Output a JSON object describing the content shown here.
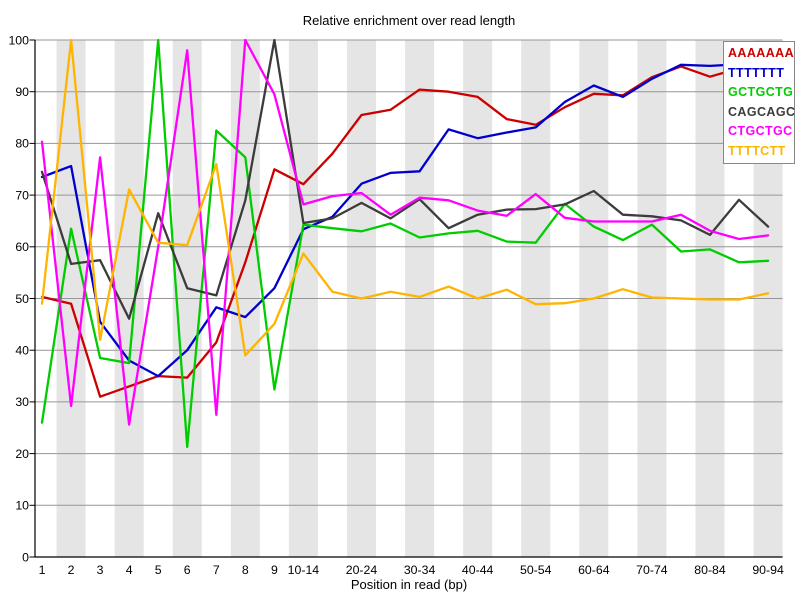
{
  "chart_data": {
    "type": "line",
    "title": "Relative enrichment over read length",
    "xlabel": "Position in read (bp)",
    "ylabel": "",
    "ylim": [
      0,
      100
    ],
    "yticks": [
      0,
      10,
      20,
      30,
      40,
      50,
      60,
      70,
      80,
      90,
      100
    ],
    "grid": "horizontal",
    "band_color": "#e5e5e5",
    "gridline_color": "#969696",
    "legend_position": "top-right",
    "categories": [
      "1",
      "2",
      "3",
      "4",
      "5",
      "6",
      "7",
      "8",
      "9",
      "10-14",
      "15-19",
      "20-24",
      "25-29",
      "30-34",
      "35-39",
      "40-44",
      "45-49",
      "50-54",
      "55-59",
      "60-64",
      "65-69",
      "70-74",
      "75-79",
      "80-84",
      "85-89",
      "90-94"
    ],
    "xticks_shown": [
      "1",
      "2",
      "3",
      "4",
      "5",
      "6",
      "7",
      "8",
      "9",
      "10-14",
      "20-24",
      "30-34",
      "40-44",
      "50-54",
      "60-64",
      "70-74",
      "80-84",
      "90-94"
    ],
    "series": [
      {
        "name": "AAAAAAA",
        "color": "#cc0000",
        "values": [
          50.3,
          49.0,
          31.0,
          33.0,
          35.0,
          34.7,
          41.5,
          57.0,
          75.0,
          72.1,
          78.0,
          85.5,
          86.5,
          90.4,
          90.0,
          89.0,
          84.7,
          83.6,
          87.0,
          89.6,
          89.3,
          92.8,
          94.9,
          92.9,
          94.5,
          95.5
        ]
      },
      {
        "name": "TTTTTTT",
        "color": "#0000cc",
        "values": [
          73.5,
          75.6,
          45.5,
          38.0,
          35.0,
          40.0,
          48.3,
          46.4,
          52.0,
          63.4,
          65.8,
          72.2,
          74.3,
          74.6,
          82.7,
          81.0,
          82.1,
          83.1,
          88.0,
          91.2,
          89.0,
          92.5,
          95.2,
          95.0,
          95.3,
          95.8
        ]
      },
      {
        "name": "GCTGCTG",
        "color": "#00cc00",
        "values": [
          26.0,
          63.5,
          38.5,
          37.5,
          100.0,
          21.3,
          82.5,
          77.3,
          32.4,
          64.3,
          63.6,
          63.0,
          64.5,
          61.8,
          62.6,
          63.1,
          61.0,
          60.8,
          68.3,
          63.9,
          61.3,
          64.3,
          59.1,
          59.5,
          57.0,
          57.3
        ]
      },
      {
        "name": "CAGCAGC",
        "color": "#3c3c3c",
        "values": [
          74.5,
          56.7,
          57.4,
          46.1,
          66.5,
          52.0,
          50.6,
          69.0,
          100.0,
          64.6,
          65.5,
          68.5,
          65.5,
          69.2,
          63.6,
          66.2,
          67.2,
          67.3,
          68.2,
          70.8,
          66.2,
          65.9,
          65.1,
          62.3,
          69.1,
          63.9
        ]
      },
      {
        "name": "CTGCTGC",
        "color": "#ff00ff",
        "values": [
          80.3,
          29.2,
          77.3,
          25.6,
          60.0,
          98.0,
          27.5,
          100.0,
          89.5,
          68.2,
          69.8,
          70.4,
          66.2,
          69.5,
          69.0,
          67.0,
          66.0,
          70.2,
          65.6,
          64.9,
          64.9,
          64.9,
          66.2,
          63.1,
          61.5,
          62.2
        ]
      },
      {
        "name": "TTTTCTT",
        "color": "#ffb400",
        "values": [
          49.0,
          100.0,
          42.0,
          71.1,
          60.8,
          60.3,
          76.0,
          39.0,
          45.1,
          58.7,
          51.3,
          50.0,
          51.3,
          50.3,
          52.3,
          50.0,
          51.7,
          48.9,
          49.1,
          50.0,
          51.8,
          50.2,
          50.0,
          49.8,
          49.8,
          51.0
        ]
      }
    ]
  }
}
